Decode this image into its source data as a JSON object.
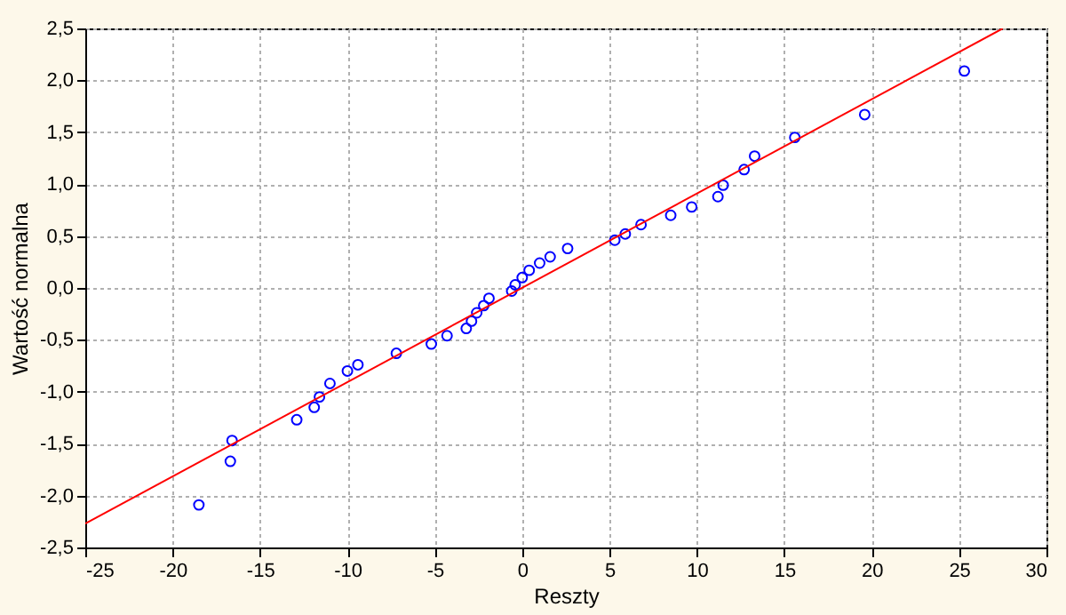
{
  "chart_data": {
    "type": "scatter",
    "xlabel": "Reszty",
    "ylabel": "Wartość normalna",
    "xlim": [
      -25,
      30
    ],
    "ylim": [
      -2.5,
      2.5
    ],
    "xticks": [
      -25,
      -20,
      -15,
      -10,
      -5,
      0,
      5,
      10,
      15,
      20,
      25,
      30
    ],
    "yticks": [
      {
        "value": -2.5,
        "label": "-2,5"
      },
      {
        "value": -2.0,
        "label": "-2,0"
      },
      {
        "value": -1.5,
        "label": "-1,5"
      },
      {
        "value": -1.0,
        "label": "-1,0"
      },
      {
        "value": -0.5,
        "label": "-0,5"
      },
      {
        "value": 0.0,
        "label": "0,0"
      },
      {
        "value": 0.5,
        "label": "0,5"
      },
      {
        "value": 1.0,
        "label": "1,0"
      },
      {
        "value": 1.5,
        "label": "1,5"
      },
      {
        "value": 2.0,
        "label": "2,0"
      },
      {
        "value": 2.5,
        "label": "2,5"
      }
    ],
    "grid": true,
    "series": [
      {
        "marker": "circle",
        "color": "#0000ff",
        "x": [
          -18.5,
          -16.7,
          -16.6,
          -12.9,
          -11.9,
          -11.6,
          -11.0,
          -10.0,
          -9.4,
          -7.2,
          -5.2,
          -4.3,
          -3.2,
          -2.9,
          -2.6,
          -2.2,
          -1.9,
          -0.6,
          -0.4,
          0.0,
          0.4,
          1.0,
          1.6,
          2.6,
          5.3,
          5.9,
          6.8,
          8.5,
          9.7,
          11.2,
          11.5,
          12.7,
          13.3,
          15.6,
          19.6,
          25.3
        ],
        "values": [
          -2.09,
          -1.67,
          -1.47,
          -1.27,
          -1.15,
          -1.05,
          -0.92,
          -0.8,
          -0.74,
          -0.63,
          -0.54,
          -0.46,
          -0.39,
          -0.32,
          -0.24,
          -0.17,
          -0.1,
          -0.03,
          0.03,
          0.1,
          0.17,
          0.24,
          0.3,
          0.38,
          0.46,
          0.52,
          0.61,
          0.7,
          0.78,
          0.88,
          0.99,
          1.14,
          1.27,
          1.45,
          1.67,
          2.09
        ]
      },
      {
        "type": "line",
        "color": "#ff0000",
        "line_style": "solid",
        "x": [
          -25,
          27.5
        ],
        "values": [
          -2.27,
          2.5
        ]
      }
    ]
  }
}
